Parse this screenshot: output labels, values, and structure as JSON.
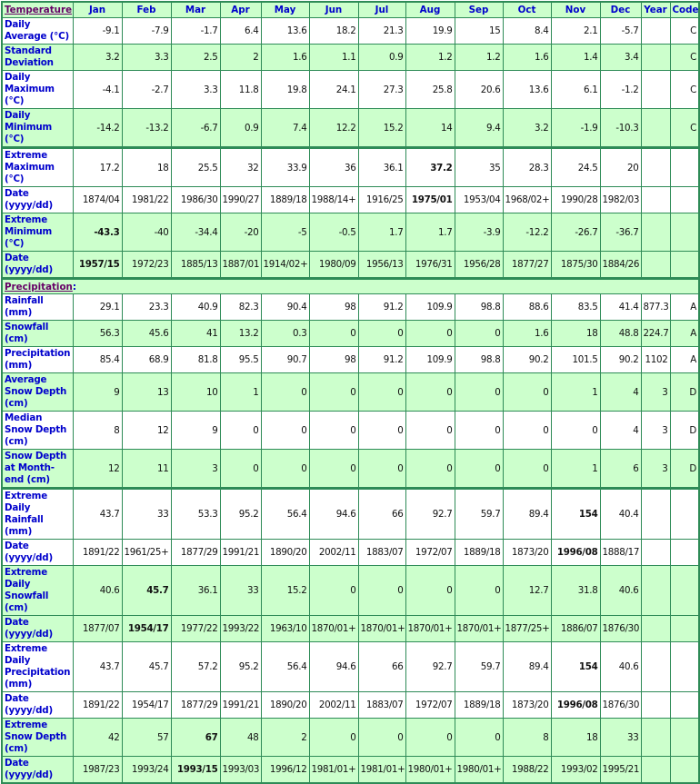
{
  "header": {
    "section_label": "Temperature",
    "months": [
      "Jan",
      "Feb",
      "Mar",
      "Apr",
      "May",
      "Jun",
      "Jul",
      "Aug",
      "Sep",
      "Oct",
      "Nov",
      "Dec"
    ],
    "year": "Year",
    "code": "Code"
  },
  "colors": {
    "accent_green": "#ccffcc",
    "border": "#2e8b57",
    "label_blue": "#0000cc",
    "link_purple": "#660066"
  },
  "temperature_rows": [
    {
      "label": "Daily Average (°C)",
      "values": [
        "-9.1",
        "-7.9",
        "-1.7",
        "6.4",
        "13.6",
        "18.2",
        "21.3",
        "19.9",
        "15",
        "8.4",
        "2.1",
        "-5.7"
      ],
      "year": "",
      "code": "C",
      "bold": []
    },
    {
      "label": "Standard Deviation",
      "values": [
        "3.2",
        "3.3",
        "2.5",
        "2",
        "1.6",
        "1.1",
        "0.9",
        "1.2",
        "1.2",
        "1.6",
        "1.4",
        "3.4"
      ],
      "year": "",
      "code": "C",
      "bold": []
    },
    {
      "label": "Daily Maximum (°C)",
      "values": [
        "-4.1",
        "-2.7",
        "3.3",
        "11.8",
        "19.8",
        "24.1",
        "27.3",
        "25.8",
        "20.6",
        "13.6",
        "6.1",
        "-1.2"
      ],
      "year": "",
      "code": "C",
      "bold": []
    },
    {
      "label": "Daily Minimum (°C)",
      "values": [
        "-14.2",
        "-13.2",
        "-6.7",
        "0.9",
        "7.4",
        "12.2",
        "15.2",
        "14",
        "9.4",
        "3.2",
        "-1.9",
        "-10.3"
      ],
      "year": "",
      "code": "C",
      "bold": []
    },
    {
      "label": "Extreme Maximum (°C)",
      "values": [
        "17.2",
        "18",
        "25.5",
        "32",
        "33.9",
        "36",
        "36.1",
        "37.2",
        "35",
        "28.3",
        "24.5",
        "20"
      ],
      "year": "",
      "code": "",
      "bold": [
        7
      ]
    },
    {
      "label": "Date (yyyy/dd)",
      "values": [
        "1874/04",
        "1981/22",
        "1986/30",
        "1990/27",
        "1889/18",
        "1988/14+",
        "1916/25",
        "1975/01",
        "1953/04",
        "1968/02+",
        "1990/28",
        "1982/03"
      ],
      "year": "",
      "code": "",
      "bold": [
        7
      ]
    },
    {
      "label": "Extreme Minimum (°C)",
      "values": [
        "-43.3",
        "-40",
        "-34.4",
        "-20",
        "-5",
        "-0.5",
        "1.7",
        "1.7",
        "-3.9",
        "-12.2",
        "-26.7",
        "-36.7"
      ],
      "year": "",
      "code": "",
      "bold": [
        0
      ]
    },
    {
      "label": "Date (yyyy/dd)",
      "values": [
        "1957/15",
        "1972/23",
        "1885/13",
        "1887/01",
        "1914/02+",
        "1980/09",
        "1956/13",
        "1976/31",
        "1956/28",
        "1877/27",
        "1875/30",
        "1884/26"
      ],
      "year": "",
      "code": "",
      "bold": [
        0
      ]
    }
  ],
  "precipitation_section_label": "Precipitation",
  "precipitation_rows": [
    {
      "label": "Rainfall (mm)",
      "values": [
        "29.1",
        "23.3",
        "40.9",
        "82.3",
        "90.4",
        "98",
        "91.2",
        "109.9",
        "98.8",
        "88.6",
        "83.5",
        "41.4"
      ],
      "year": "877.3",
      "code": "A",
      "bold": []
    },
    {
      "label": "Snowfall (cm)",
      "values": [
        "56.3",
        "45.6",
        "41",
        "13.2",
        "0.3",
        "0",
        "0",
        "0",
        "0",
        "1.6",
        "18",
        "48.8"
      ],
      "year": "224.7",
      "code": "A",
      "bold": []
    },
    {
      "label": "Precipitation (mm)",
      "values": [
        "85.4",
        "68.9",
        "81.8",
        "95.5",
        "90.7",
        "98",
        "91.2",
        "109.9",
        "98.8",
        "90.2",
        "101.5",
        "90.2"
      ],
      "year": "1102",
      "code": "A",
      "bold": []
    },
    {
      "label": "Average Snow Depth (cm)",
      "values": [
        "9",
        "13",
        "10",
        "1",
        "0",
        "0",
        "0",
        "0",
        "0",
        "0",
        "1",
        "4"
      ],
      "year": "3",
      "code": "D",
      "bold": []
    },
    {
      "label": "Median Snow Depth (cm)",
      "values": [
        "8",
        "12",
        "9",
        "0",
        "0",
        "0",
        "0",
        "0",
        "0",
        "0",
        "0",
        "4"
      ],
      "year": "3",
      "code": "D",
      "bold": []
    },
    {
      "label": "Snow Depth at Month-end (cm)",
      "values": [
        "12",
        "11",
        "3",
        "0",
        "0",
        "0",
        "0",
        "0",
        "0",
        "0",
        "1",
        "6"
      ],
      "year": "3",
      "code": "D",
      "bold": []
    },
    {
      "label": "Extreme Daily Rainfall (mm)",
      "values": [
        "43.7",
        "33",
        "53.3",
        "95.2",
        "56.4",
        "94.6",
        "66",
        "92.7",
        "59.7",
        "89.4",
        "154",
        "40.4"
      ],
      "year": "",
      "code": "",
      "bold": [
        10
      ]
    },
    {
      "label": "Date (yyyy/dd)",
      "values": [
        "1891/22",
        "1961/25+",
        "1877/29",
        "1991/21",
        "1890/20",
        "2002/11",
        "1883/07",
        "1972/07",
        "1889/18",
        "1873/20",
        "1996/08",
        "1888/17"
      ],
      "year": "",
      "code": "",
      "bold": [
        10
      ]
    },
    {
      "label": "Extreme Daily Snowfall (cm)",
      "values": [
        "40.6",
        "45.7",
        "36.1",
        "33",
        "15.2",
        "0",
        "0",
        "0",
        "0",
        "12.7",
        "31.8",
        "40.6"
      ],
      "year": "",
      "code": "",
      "bold": [
        1
      ]
    },
    {
      "label": "Date (yyyy/dd)",
      "values": [
        "1877/07",
        "1954/17",
        "1977/22",
        "1993/22",
        "1963/10",
        "1870/01+",
        "1870/01+",
        "1870/01+",
        "1870/01+",
        "1877/25+",
        "1886/07",
        "1876/30"
      ],
      "year": "",
      "code": "",
      "bold": [
        1
      ]
    },
    {
      "label": "Extreme Daily Precipitation (mm)",
      "values": [
        "43.7",
        "45.7",
        "57.2",
        "95.2",
        "56.4",
        "94.6",
        "66",
        "92.7",
        "59.7",
        "89.4",
        "154",
        "40.6"
      ],
      "year": "",
      "code": "",
      "bold": [
        10
      ]
    },
    {
      "label": "Date (yyyy/dd)",
      "values": [
        "1891/22",
        "1954/17",
        "1877/29",
        "1991/21",
        "1890/20",
        "2002/11",
        "1883/07",
        "1972/07",
        "1889/18",
        "1873/20",
        "1996/08",
        "1876/30"
      ],
      "year": "",
      "code": "",
      "bold": [
        10
      ]
    },
    {
      "label": "Extreme Snow Depth (cm)",
      "values": [
        "42",
        "57",
        "67",
        "48",
        "2",
        "0",
        "0",
        "0",
        "0",
        "8",
        "18",
        "33"
      ],
      "year": "",
      "code": "",
      "bold": [
        2
      ]
    },
    {
      "label": "Date (yyyy/dd)",
      "values": [
        "1987/23",
        "1993/24",
        "1993/15",
        "1993/03",
        "1996/12",
        "1981/01+",
        "1981/01+",
        "1980/01+",
        "1980/01+",
        "1988/22",
        "1993/02",
        "1995/21"
      ],
      "year": "",
      "code": "",
      "bold": [
        2
      ]
    }
  ]
}
